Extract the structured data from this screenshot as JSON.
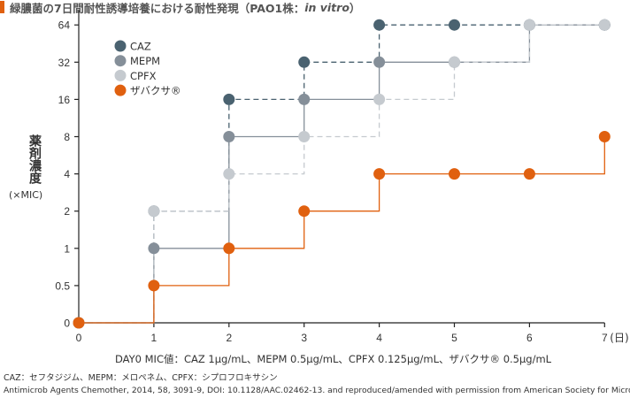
{
  "title": {
    "main": "緑膿菌の7日間耐性誘導培養における耐性発現（PAO1株：",
    "italic": "in vitro",
    "close": "）"
  },
  "chart_data": {
    "type": "line",
    "step": true,
    "ylabel": "薬剤濃度",
    "yunit": "(×MIC)",
    "xunit": "(日)",
    "x": [
      0,
      1,
      2,
      3,
      4,
      5,
      6,
      7
    ],
    "x_tick_labels": [
      "0",
      "1",
      "2",
      "3",
      "4",
      "5",
      "6",
      "7"
    ],
    "y_scale": "log2 (categorical levels)",
    "y_tick_labels": [
      "0",
      "0.5",
      "1",
      "2",
      "4",
      "8",
      "16",
      "32",
      "64"
    ],
    "legend_position": "top-left",
    "grid": false,
    "series": [
      {
        "name": "CAZ",
        "values": [
          0,
          2,
          16,
          32,
          64,
          64,
          64,
          64
        ],
        "color": "#4a6270",
        "line": "dashed"
      },
      {
        "name": "MEPM",
        "values": [
          0,
          1,
          8,
          16,
          32,
          32,
          64,
          64
        ],
        "color": "#858f99",
        "line": "solid"
      },
      {
        "name": "CPFX",
        "values": [
          0,
          2,
          4,
          8,
          16,
          32,
          64,
          64
        ],
        "color": "#c5cacf",
        "line": "dashed"
      },
      {
        "name": "ザバクサ®",
        "values": [
          0,
          0.5,
          1,
          2,
          4,
          4,
          4,
          8
        ],
        "color": "#e0600f",
        "line": "solid"
      }
    ]
  },
  "notes": {
    "mic": "DAY0 MIC値：CAZ 1μg/mL、MEPM 0.5μg/mL、CPFX 0.125μg/mL、ザバクサ® 0.5μg/mL",
    "abbrev": "CAZ：セフタジジム、MEPM：メロペネム、CPFX：シプロフロキサシン",
    "source": "Antimicrob Agents Chemother, 2014, 58, 3091-9, DOI: 10.1128/AAC.02462-13. and reproduced/amended with permission from American Society for Microbiology."
  }
}
